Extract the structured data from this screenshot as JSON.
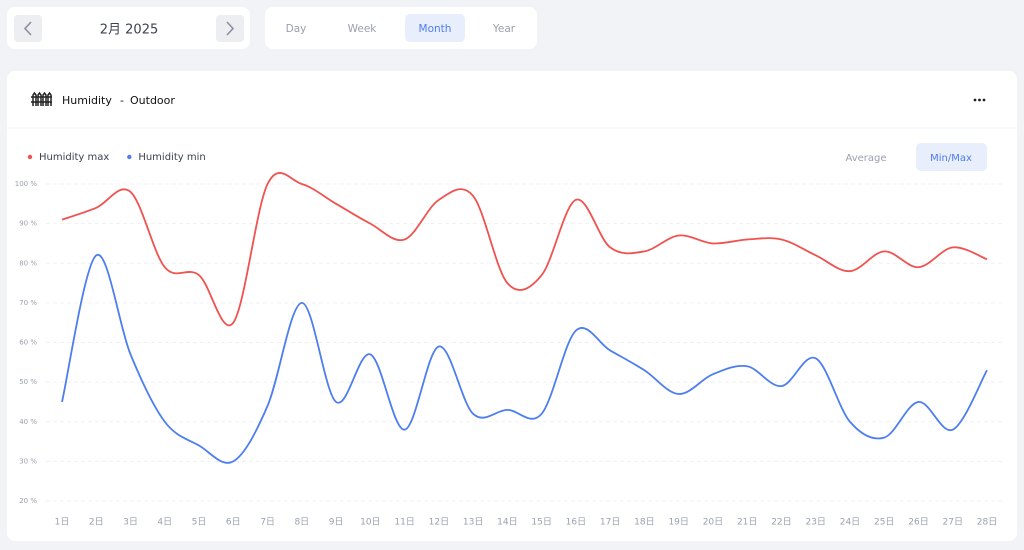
{
  "header": {
    "date": "2月 2025",
    "tabs": [
      "Day",
      "Week",
      "Month",
      "Year"
    ]
  },
  "chart_data": {
    "type": "line",
    "title": "Humidity",
    "subtitle": "Outdoor",
    "separator": "-",
    "modes": [
      "Average",
      "Min/Max"
    ],
    "categories": [
      "1日",
      "2日",
      "3日",
      "4日",
      "5日",
      "6日",
      "7日",
      "8日",
      "9日",
      "10日",
      "11日",
      "12日",
      "13日",
      "14日",
      "15日",
      "16日",
      "17日",
      "18日",
      "19日",
      "20日",
      "21日",
      "22日",
      "23日",
      "24日",
      "25日",
      "26日",
      "27日",
      "28日"
    ],
    "series": [
      {
        "name": "Humidity max",
        "color": "#f0524f",
        "values": [
          91,
          94,
          98,
          79,
          77,
          65,
          100,
          100,
          95,
          90,
          86,
          96,
          97,
          75,
          77,
          96,
          84,
          83,
          87,
          85,
          86,
          86,
          82,
          78,
          83,
          79,
          84,
          81
        ]
      },
      {
        "name": "Humidity min",
        "color": "#4d7ef0",
        "values": [
          45,
          82,
          57,
          40,
          34,
          30,
          44,
          70,
          45,
          57,
          38,
          59,
          42,
          43,
          42,
          63,
          58,
          53,
          47,
          52,
          54,
          49,
          56,
          40,
          36,
          45,
          38,
          53
        ]
      }
    ],
    "ylim": [
      20,
      100
    ],
    "yticks": [
      {
        "value": 20,
        "label": "20 %"
      },
      {
        "value": 30,
        "label": "30 %"
      },
      {
        "value": 40,
        "label": "40 %"
      },
      {
        "value": 50,
        "label": "50 %"
      },
      {
        "value": 60,
        "label": "60 %"
      },
      {
        "value": 70,
        "label": "70 %"
      },
      {
        "value": 80,
        "label": "80 %"
      },
      {
        "value": 90,
        "label": "90 %"
      },
      {
        "value": 100,
        "label": "100 %"
      }
    ],
    "grid": true
  }
}
